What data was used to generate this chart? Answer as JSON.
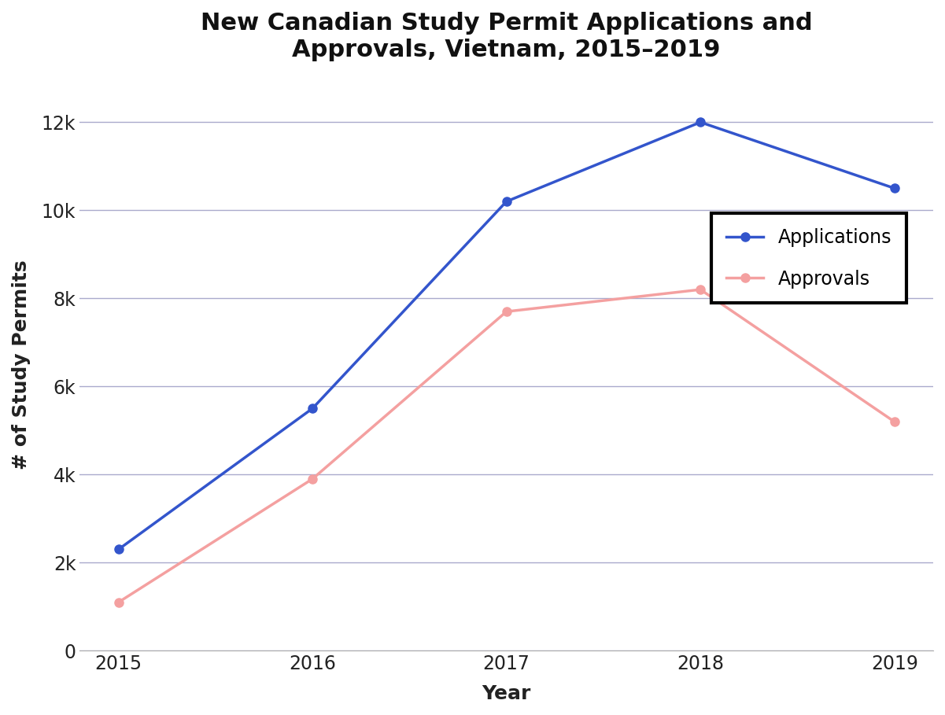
{
  "years": [
    2015,
    2016,
    2017,
    2018,
    2019
  ],
  "applications": [
    2300,
    5500,
    10200,
    12000,
    10500
  ],
  "approvals": [
    1100,
    3900,
    7700,
    8200,
    5200
  ],
  "applications_color": "#3355cc",
  "approvals_color": "#f4a0a0",
  "title_line1": "New Canadian Study Permit Applications and",
  "title_line2": "Approvals, Vietnam, 2015–2019",
  "xlabel": "Year",
  "ylabel": "# of Study Permits",
  "ylim": [
    0,
    13000
  ],
  "yticks": [
    0,
    2000,
    4000,
    6000,
    8000,
    10000,
    12000
  ],
  "ytick_labels": [
    "0",
    "2k",
    "4k",
    "6k",
    "8k",
    "10k",
    "12k"
  ],
  "legend_labels": [
    "Applications",
    "Approvals"
  ],
  "background_color": "#ffffff",
  "grid_color": "#aaaacc",
  "title_fontsize": 22,
  "axis_label_fontsize": 18,
  "tick_fontsize": 17,
  "legend_fontsize": 17,
  "line_width": 2.5,
  "marker_size": 8
}
